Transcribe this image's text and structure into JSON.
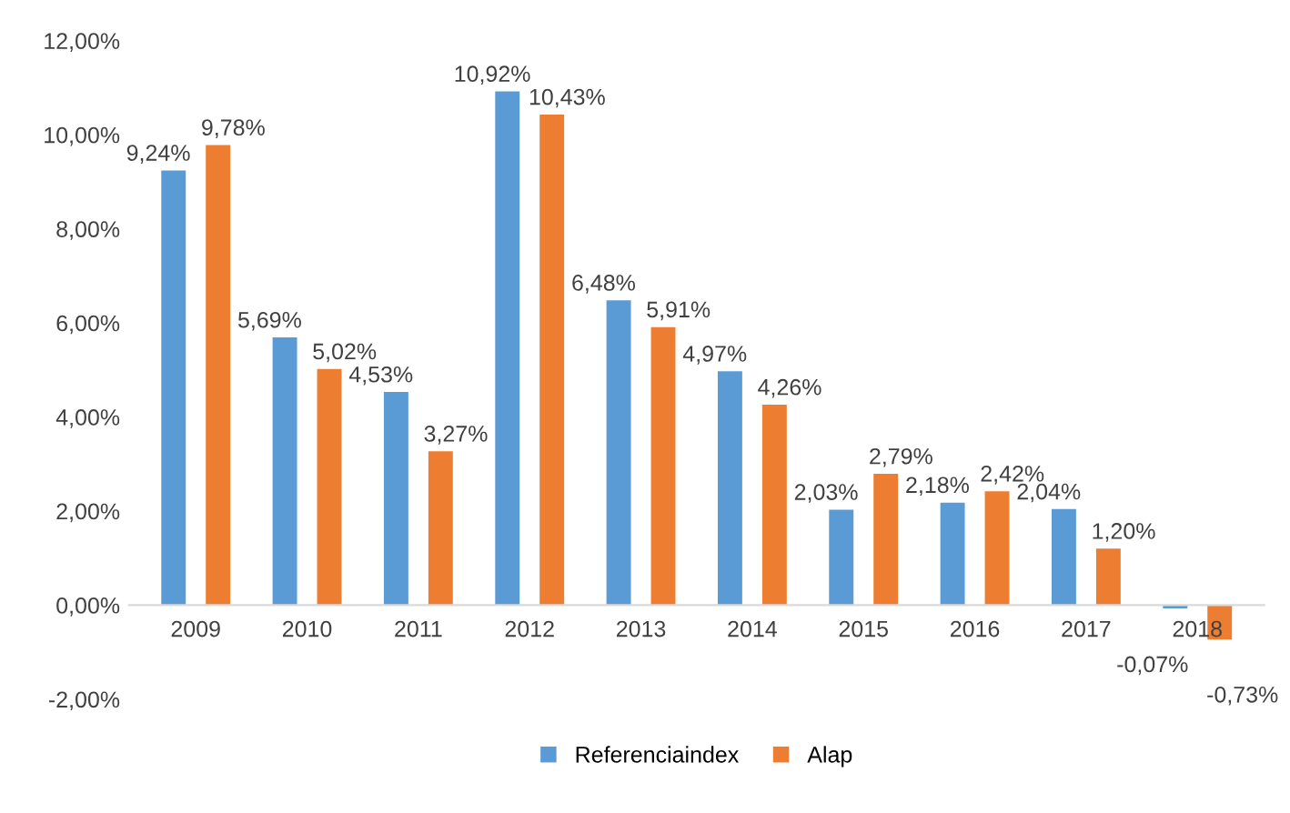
{
  "chart_data": {
    "type": "bar",
    "categories": [
      "2009",
      "2010",
      "2011",
      "2012",
      "2013",
      "2014",
      "2015",
      "2016",
      "2017",
      "2018"
    ],
    "series": [
      {
        "name": "Referenciaindex",
        "color": "#5b9bd5",
        "values": [
          9.24,
          5.69,
          4.53,
          10.92,
          6.48,
          4.97,
          2.03,
          2.18,
          2.04,
          -0.07
        ],
        "value_labels": [
          "9,24%",
          "5,69%",
          "4,53%",
          "10,92%",
          "6,48%",
          "4,97%",
          "2,03%",
          "2,18%",
          "2,04%",
          "-0,07%"
        ]
      },
      {
        "name": "Alap",
        "color": "#ed7d31",
        "values": [
          9.78,
          5.02,
          3.27,
          10.43,
          5.91,
          4.26,
          2.79,
          2.42,
          1.2,
          -0.73
        ],
        "value_labels": [
          "9,78%",
          "5,02%",
          "3,27%",
          "10,43%",
          "5,91%",
          "4,26%",
          "2,79%",
          "2,42%",
          "1,20%",
          "-0,73%"
        ]
      }
    ],
    "ylim": [
      -2,
      12
    ],
    "yticks": [
      {
        "value": -2,
        "label": "-2,00%"
      },
      {
        "value": 0,
        "label": "0,00%"
      },
      {
        "value": 2,
        "label": "2,00%"
      },
      {
        "value": 4,
        "label": "4,00%"
      },
      {
        "value": 6,
        "label": "6,00%"
      },
      {
        "value": 8,
        "label": "8,00%"
      },
      {
        "value": 10,
        "label": "10,00%"
      },
      {
        "value": 12,
        "label": "12,00%"
      }
    ],
    "grid": false,
    "legend": "bottom"
  }
}
